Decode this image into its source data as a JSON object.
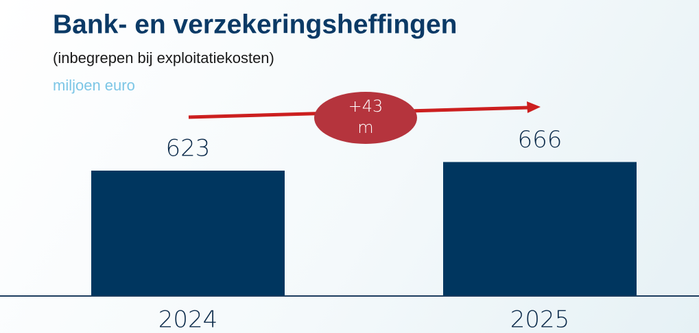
{
  "chart_data": {
    "type": "bar",
    "title": "Bank- en verzekeringsheffingen",
    "subtitle": "(inbegrepen bij exploitatiekosten)",
    "unit": "miljoen euro",
    "categories": [
      "2024",
      "2025"
    ],
    "values": [
      623,
      666
    ],
    "color": "#00365f",
    "annotation": "+43 m"
  }
}
